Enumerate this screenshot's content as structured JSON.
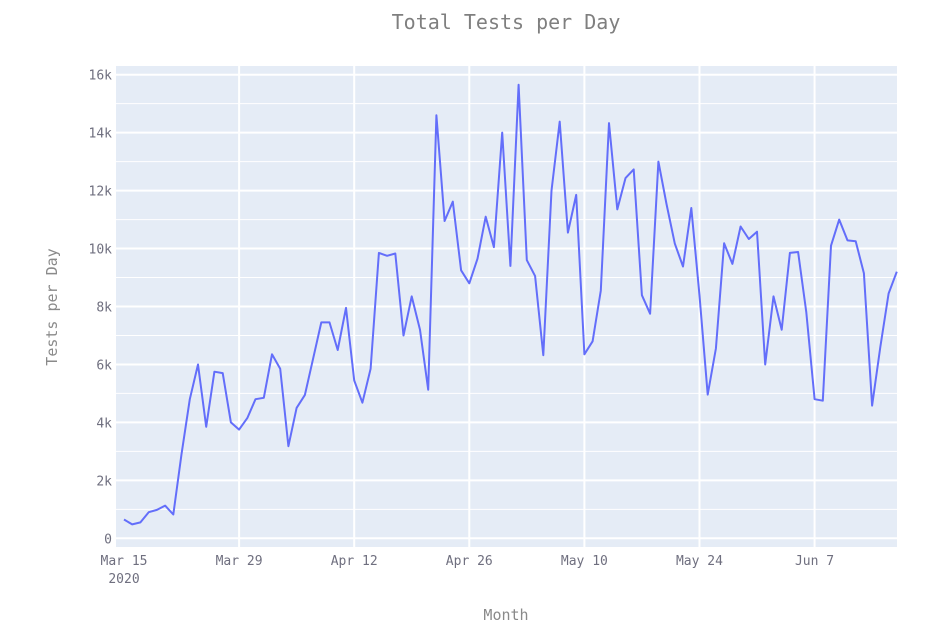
{
  "chart_data": {
    "type": "line",
    "title": "Total Tests per Day",
    "xlabel": "Month",
    "ylabel": "Tests per Day",
    "x_start": "2020-03-15",
    "x_tick_labels": [
      "Mar 15",
      "Mar 29",
      "Apr 12",
      "Apr 26",
      "May 10",
      "May 24",
      "Jun 7"
    ],
    "x_tick_year_label": "2020",
    "y_tick_labels": [
      "0",
      "2k",
      "4k",
      "6k",
      "8k",
      "10k",
      "12k",
      "14k",
      "16k"
    ],
    "ylim": [
      -300,
      16300
    ],
    "grid": true,
    "colors": {
      "line": "#636efa",
      "plot_bg": "#e5ecf6"
    },
    "series": [
      {
        "x": [
          "2020-03-15",
          "2020-03-16",
          "2020-03-17",
          "2020-03-18",
          "2020-03-19",
          "2020-03-20",
          "2020-03-21",
          "2020-03-22",
          "2020-03-23",
          "2020-03-24",
          "2020-03-25",
          "2020-03-26",
          "2020-03-27",
          "2020-03-28",
          "2020-03-29",
          "2020-03-30",
          "2020-03-31",
          "2020-04-01",
          "2020-04-02",
          "2020-04-03",
          "2020-04-04",
          "2020-04-05",
          "2020-04-06",
          "2020-04-07",
          "2020-04-08",
          "2020-04-09",
          "2020-04-10",
          "2020-04-11",
          "2020-04-12",
          "2020-04-13",
          "2020-04-14",
          "2020-04-15",
          "2020-04-16",
          "2020-04-17",
          "2020-04-18",
          "2020-04-19",
          "2020-04-20",
          "2020-04-21",
          "2020-04-22",
          "2020-04-23",
          "2020-04-24",
          "2020-04-25",
          "2020-04-26",
          "2020-04-27",
          "2020-04-28",
          "2020-04-29",
          "2020-04-30",
          "2020-05-01",
          "2020-05-02",
          "2020-05-03",
          "2020-05-04",
          "2020-05-05",
          "2020-05-06",
          "2020-05-07",
          "2020-05-08",
          "2020-05-09",
          "2020-05-10",
          "2020-05-11",
          "2020-05-12",
          "2020-05-13",
          "2020-05-14",
          "2020-05-15",
          "2020-05-16",
          "2020-05-17",
          "2020-05-18",
          "2020-05-19",
          "2020-05-20",
          "2020-05-21",
          "2020-05-22",
          "2020-05-23",
          "2020-05-24",
          "2020-05-25",
          "2020-05-26",
          "2020-05-27",
          "2020-05-28",
          "2020-05-29",
          "2020-05-30",
          "2020-05-31",
          "2020-06-01",
          "2020-06-02",
          "2020-06-03",
          "2020-06-04",
          "2020-06-05",
          "2020-06-06",
          "2020-06-07",
          "2020-06-08",
          "2020-06-09",
          "2020-06-10",
          "2020-06-11",
          "2020-06-12",
          "2020-06-13",
          "2020-06-14",
          "2020-06-15",
          "2020-06-16",
          "2020-06-17"
        ],
        "values": [
          650,
          480,
          550,
          900,
          980,
          1130,
          820,
          2900,
          4800,
          6000,
          3850,
          5750,
          5700,
          4000,
          3750,
          4150,
          4800,
          4850,
          6350,
          5850,
          3180,
          4500,
          4950,
          6200,
          7450,
          7450,
          6500,
          7950,
          5450,
          4680,
          5850,
          9850,
          9750,
          9830,
          7000,
          8350,
          7200,
          5130,
          14600,
          10950,
          11620,
          9250,
          8800,
          9650,
          11100,
          10050,
          14000,
          9400,
          15650,
          9600,
          9050,
          6320,
          12000,
          14380,
          10550,
          11850,
          6350,
          6800,
          8550,
          14330,
          11350,
          12430,
          12730,
          8390,
          7750,
          13000,
          11520,
          10170,
          9380,
          11400,
          8380,
          4960,
          6550,
          10180,
          9470,
          10760,
          10330,
          10580,
          6000,
          8350,
          7200,
          9850,
          9880,
          7800,
          4800,
          4750,
          10100,
          11000,
          10280,
          10250,
          9150,
          4580,
          6600,
          8450,
          9200
        ]
      }
    ]
  }
}
